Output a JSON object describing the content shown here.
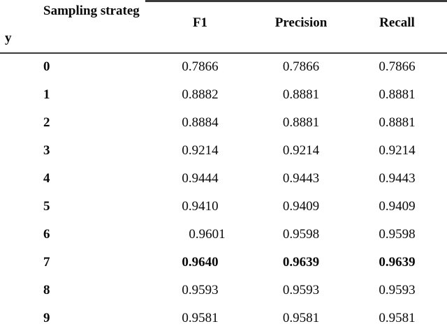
{
  "table": {
    "col1_header_line1": "Sampling strateg",
    "col1_header_line2": "y",
    "col_headers": {
      "f1": "F1",
      "precision": "Precision",
      "recall": "Recall"
    },
    "rows": [
      {
        "strategy": "0",
        "f1": "0.7866",
        "precision": "0.7866",
        "recall": "0.7866"
      },
      {
        "strategy": "1",
        "f1": "0.8882",
        "precision": "0.8881",
        "recall": "0.8881"
      },
      {
        "strategy": "2",
        "f1": "0.8884",
        "precision": "0.8881",
        "recall": "0.8881"
      },
      {
        "strategy": "3",
        "f1": "0.9214",
        "precision": "0.9214",
        "recall": "0.9214"
      },
      {
        "strategy": "4",
        "f1": "0.9444",
        "precision": "0.9443",
        "recall": "0.9443"
      },
      {
        "strategy": "5",
        "f1": "0.9410",
        "precision": "0.9409",
        "recall": "0.9409"
      },
      {
        "strategy": "6",
        "f1": "0.9601",
        "precision": "0.9598",
        "recall": "0.9598"
      },
      {
        "strategy": "7",
        "f1": "0.9640",
        "precision": "0.9639",
        "recall": "0.9639"
      },
      {
        "strategy": "8",
        "f1": "0.9593",
        "precision": "0.9593",
        "recall": "0.9593"
      },
      {
        "strategy": "9",
        "f1": "0.9581",
        "precision": "0.9581",
        "recall": "0.9581"
      }
    ]
  }
}
